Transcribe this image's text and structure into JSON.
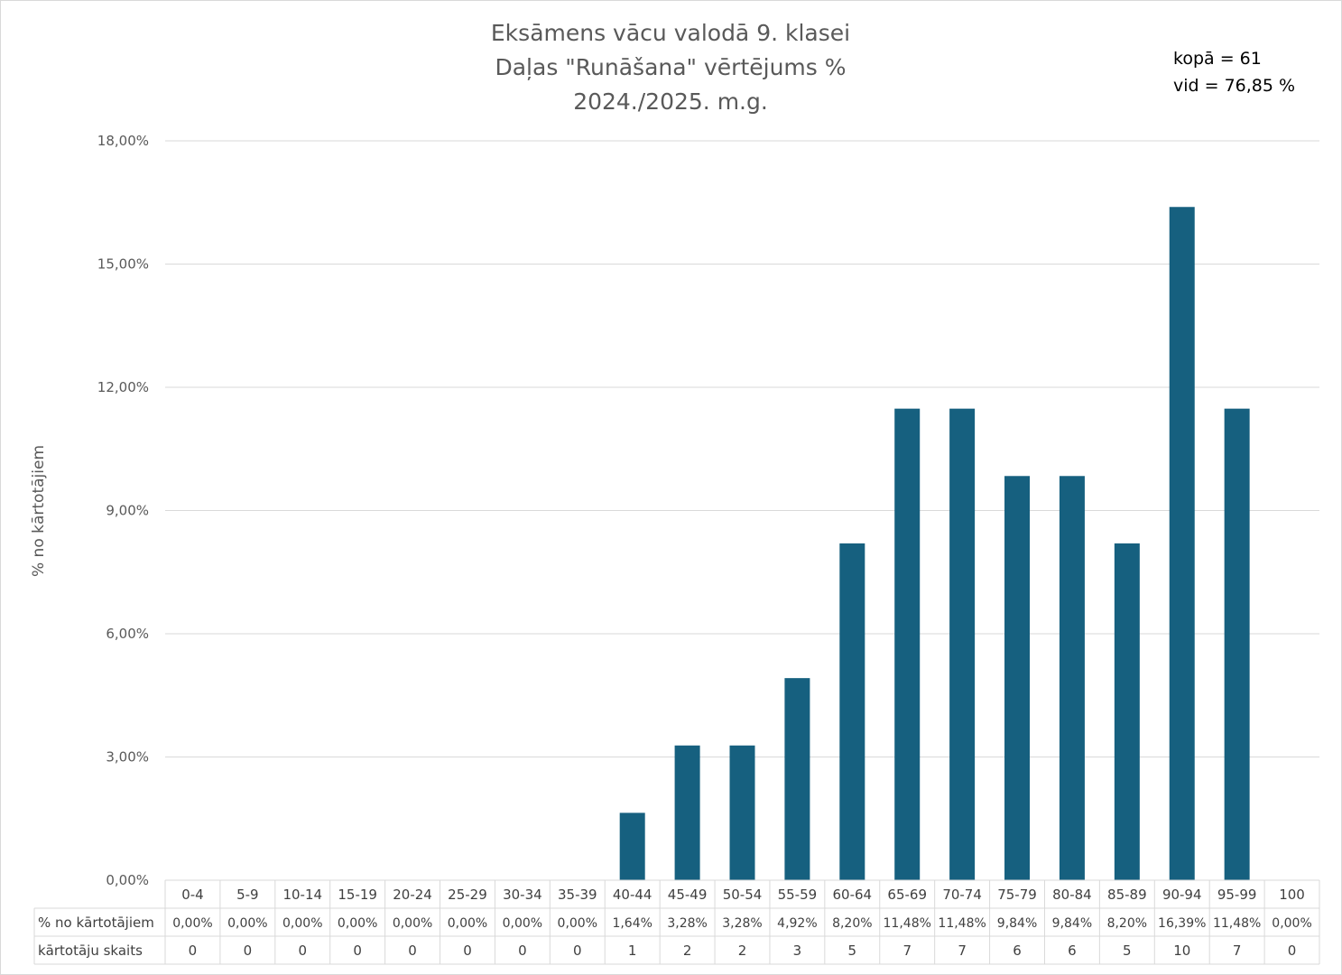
{
  "chart_data": {
    "type": "bar",
    "title_lines": [
      "Eksāmens vācu valodā 9. klasei",
      "Daļas \"Runāšana\" vērtējums %",
      "2024./2025. m.g."
    ],
    "notes": [
      "kopā = 61",
      "vid = 76,85 %"
    ],
    "ylabel": "% no kārtotājiem",
    "ylim": [
      0,
      18
    ],
    "yticks": [
      "0,00%",
      "3,00%",
      "6,00%",
      "9,00%",
      "12,00%",
      "15,00%",
      "18,00%"
    ],
    "categories": [
      "0-4",
      "5-9",
      "10-14",
      "15-19",
      "20-24",
      "25-29",
      "30-34",
      "35-39",
      "40-44",
      "45-49",
      "50-54",
      "55-59",
      "60-64",
      "65-69",
      "70-74",
      "75-79",
      "80-84",
      "85-89",
      "90-94",
      "95-99",
      "100"
    ],
    "values": [
      0,
      0,
      0,
      0,
      0,
      0,
      0,
      0,
      1.64,
      3.28,
      3.28,
      4.92,
      8.2,
      11.48,
      11.48,
      9.84,
      9.84,
      8.2,
      16.39,
      11.48,
      0
    ],
    "bar_color": "#16607f",
    "grid": true,
    "table": {
      "row_labels": [
        "% no kārtotājiem",
        "kārtotāju skaits"
      ],
      "pct_labels": [
        "0,00%",
        "0,00%",
        "0,00%",
        "0,00%",
        "0,00%",
        "0,00%",
        "0,00%",
        "0,00%",
        "1,64%",
        "3,28%",
        "3,28%",
        "4,92%",
        "8,20%",
        "11,48%",
        "11,48%",
        "9,84%",
        "9,84%",
        "8,20%",
        "16,39%",
        "11,48%",
        "0,00%"
      ],
      "counts": [
        "0",
        "0",
        "0",
        "0",
        "0",
        "0",
        "0",
        "0",
        "1",
        "2",
        "2",
        "3",
        "5",
        "7",
        "7",
        "6",
        "6",
        "5",
        "10",
        "7",
        "0"
      ]
    }
  }
}
